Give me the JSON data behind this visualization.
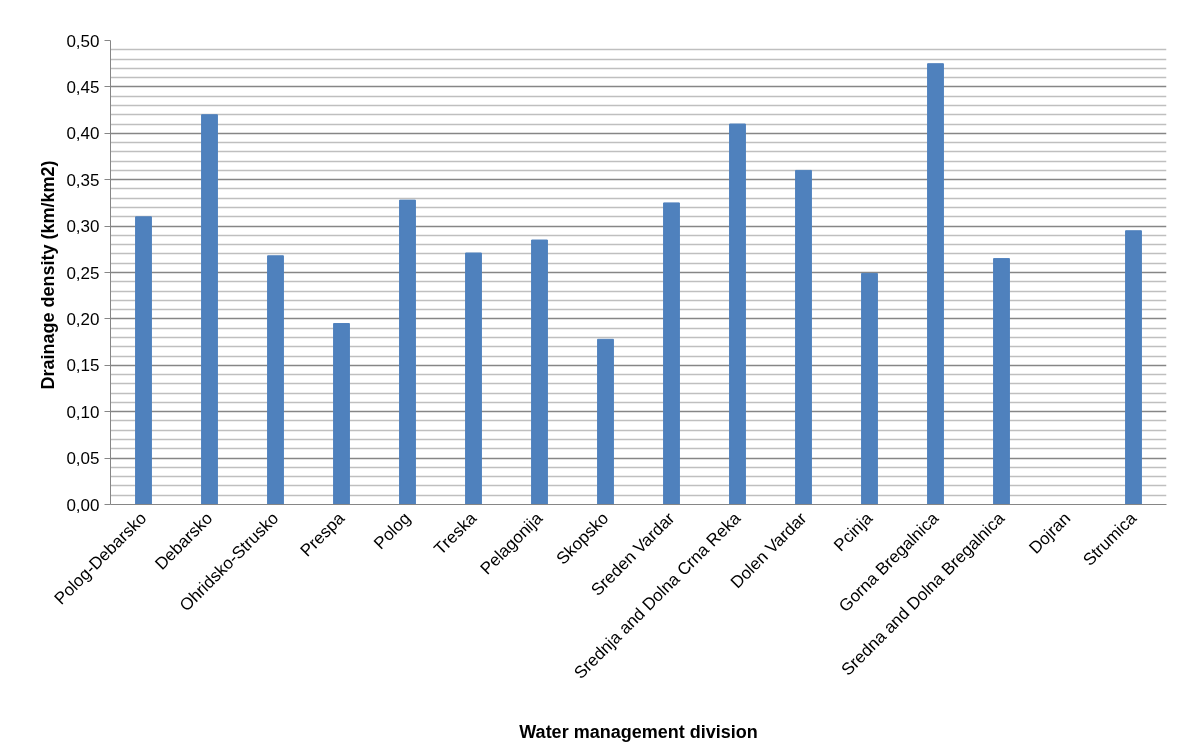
{
  "chart_data": {
    "type": "bar",
    "xlabel": "Water management division",
    "ylabel": "Drainage  density (km/km2)",
    "categories": [
      "Polog-Debarsko",
      "Debarsko",
      "Ohridsko-Strusko",
      "Prespa",
      "Polog",
      "Treska",
      "Pelagonija",
      "Skopsko",
      "Sreden Vardar",
      "Srednja and Dolna Crna Reka",
      "Dolen Vardar",
      "Pcinja",
      "Gorna Bregalnica",
      "Sredna and Dolna Bregalnica",
      "Dojran",
      "Strumica"
    ],
    "values": [
      0.31,
      0.42,
      0.268,
      0.195,
      0.328,
      0.271,
      0.285,
      0.178,
      0.325,
      0.41,
      0.36,
      0.249,
      0.475,
      0.265,
      null,
      0.295
    ],
    "color": "#4f81bd",
    "ylim": [
      0,
      0.5
    ],
    "yticks": [
      {
        "value": 0,
        "label": "0,00"
      },
      {
        "value": 0.05,
        "label": "0,05"
      },
      {
        "value": 0.1,
        "label": "0,10"
      },
      {
        "value": 0.15,
        "label": "0,15"
      },
      {
        "value": 0.2,
        "label": "0,20"
      },
      {
        "value": 0.25,
        "label": "0,25"
      },
      {
        "value": 0.3,
        "label": "0,30"
      },
      {
        "value": 0.35,
        "label": "0,35"
      },
      {
        "value": 0.4,
        "label": "0,40"
      },
      {
        "value": 0.45,
        "label": "0,45"
      },
      {
        "value": 0.5,
        "label": "0,50"
      }
    ],
    "grid": "y"
  }
}
